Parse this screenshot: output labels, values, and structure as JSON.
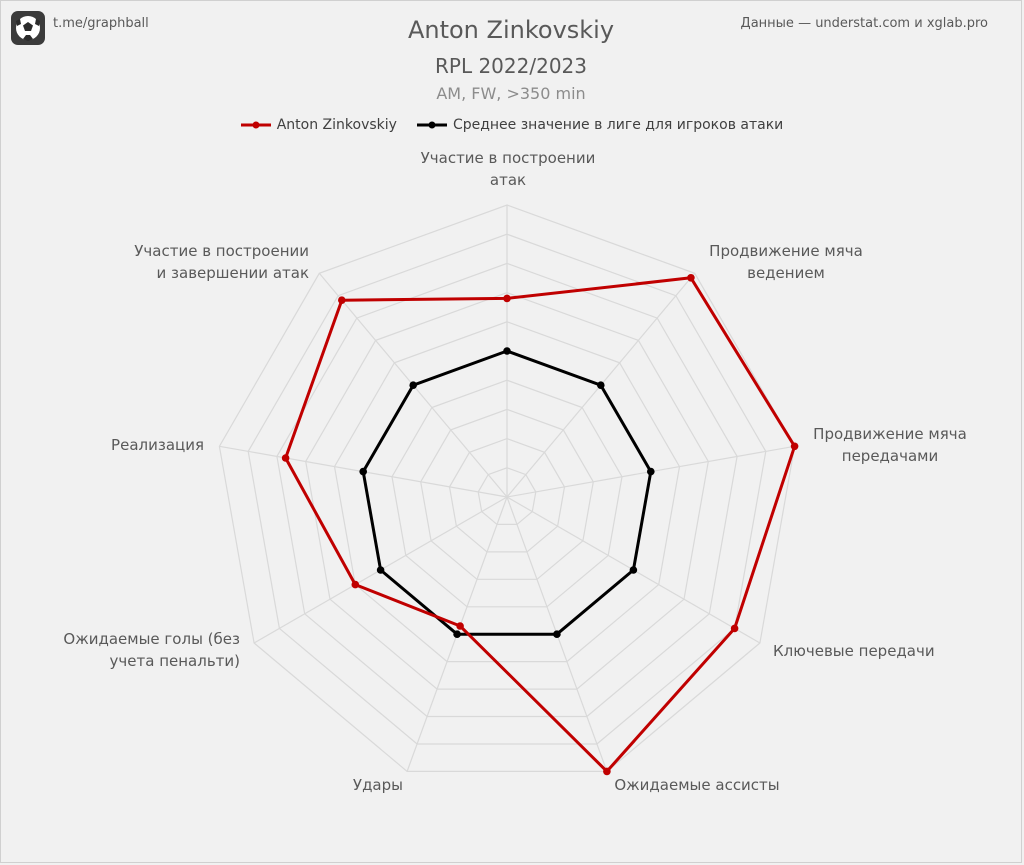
{
  "header": {
    "source_left": "t.me/graphball",
    "source_right": "Данные — understat.com и xglab.pro",
    "title": "Anton Zinkovskiy",
    "subtitle": "RPL 2022/2023",
    "subtitle2": "AM, FW, >350 min"
  },
  "icons": {
    "logo": "football-logo-icon"
  },
  "chart_data": {
    "type": "radar",
    "title": "Anton Zinkovskiy",
    "subtitle": "RPL 2022/2023",
    "categories": [
      "Участие в построении атак",
      "Продвижение мяча ведением",
      "Продвижение мяча передачами",
      "Ключевые передачи",
      "Ожидаемые ассисты",
      "Удары",
      "Ожидаемые голы (без учета пенальти)",
      "Реализация",
      "Участие в построении и завершении атак"
    ],
    "series": [
      {
        "name": "Anton Zinkovskiy",
        "color": "#c00000",
        "values": [
          0.68,
          0.98,
          1.0,
          0.9,
          1.0,
          0.47,
          0.6,
          0.77,
          0.88
        ]
      },
      {
        "name": "Среднее значение в лиге для игроков атаки",
        "color": "#000000",
        "values": [
          0.5,
          0.5,
          0.5,
          0.5,
          0.5,
          0.5,
          0.5,
          0.5,
          0.5
        ]
      }
    ],
    "rlim": [
      0,
      1
    ],
    "grid": true,
    "grid_rings": 10,
    "grid_color": "#d9d9d9",
    "legend_position": "top-center"
  }
}
